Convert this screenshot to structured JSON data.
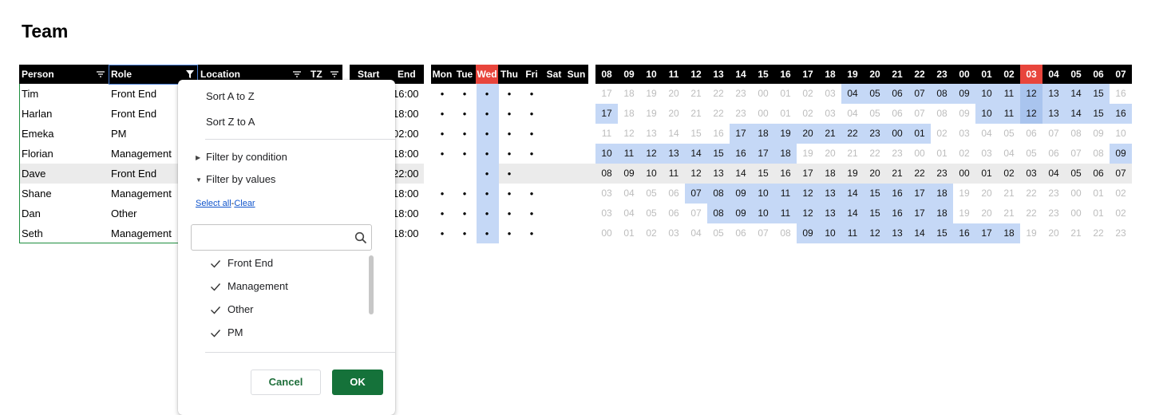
{
  "title": "Team",
  "headers": {
    "person": "Person",
    "role": "Role",
    "location": "Location",
    "tz": "TZ",
    "start": "Start",
    "end": "End",
    "days": [
      "Mon",
      "Tue",
      "Wed",
      "Thu",
      "Fri",
      "Sat",
      "Sun"
    ],
    "current_day": "Wed",
    "hours": [
      "08",
      "09",
      "10",
      "11",
      "12",
      "13",
      "14",
      "15",
      "16",
      "17",
      "18",
      "19",
      "20",
      "21",
      "22",
      "23",
      "00",
      "01",
      "02",
      "03",
      "04",
      "05",
      "06",
      "07"
    ],
    "current_hour": "03"
  },
  "colors": {
    "current_highlight": "#e8453c",
    "working": "#c5d8f6",
    "now": "#a9c4ee",
    "accent": "#15723a"
  },
  "people": [
    {
      "person": "Tim",
      "role": "Front End",
      "end": "16:00",
      "days": [
        "•",
        "•",
        "•",
        "•",
        "•",
        "",
        ""
      ],
      "hours": [
        "17",
        "18",
        "19",
        "20",
        "21",
        "22",
        "23",
        "00",
        "01",
        "02",
        "03",
        "04",
        "05",
        "06",
        "07",
        "08",
        "09",
        "10",
        "11",
        "12",
        "13",
        "14",
        "15",
        "16"
      ],
      "work_from": 11,
      "work_to": 22,
      "hour_style": "range"
    },
    {
      "person": "Harlan",
      "role": "Front End",
      "end": "18:00",
      "days": [
        "•",
        "•",
        "•",
        "•",
        "•",
        "",
        ""
      ],
      "hours": [
        "17",
        "18",
        "19",
        "20",
        "21",
        "22",
        "23",
        "00",
        "01",
        "02",
        "03",
        "04",
        "05",
        "06",
        "07",
        "08",
        "09",
        "10",
        "11",
        "12",
        "13",
        "14",
        "15",
        "16"
      ],
      "work_from": 17,
      "work_to": 23,
      "extra_in": [
        0
      ],
      "hour_style": "range"
    },
    {
      "person": "Emeka",
      "role": "PM",
      "end": "02:00",
      "days": [
        "•",
        "•",
        "•",
        "•",
        "•",
        "",
        ""
      ],
      "hours": [
        "11",
        "12",
        "13",
        "14",
        "15",
        "16",
        "17",
        "18",
        "19",
        "20",
        "21",
        "22",
        "23",
        "00",
        "01",
        "02",
        "03",
        "04",
        "05",
        "06",
        "07",
        "08",
        "09",
        "10"
      ],
      "work_from": 6,
      "work_to": 14,
      "hour_style": "range"
    },
    {
      "person": "Florian",
      "role": "Management",
      "end": "18:00",
      "days": [
        "•",
        "•",
        "•",
        "•",
        "•",
        "",
        ""
      ],
      "hours": [
        "10",
        "11",
        "12",
        "13",
        "14",
        "15",
        "16",
        "17",
        "18",
        "19",
        "20",
        "21",
        "22",
        "23",
        "00",
        "01",
        "02",
        "03",
        "04",
        "05",
        "06",
        "07",
        "08",
        "09"
      ],
      "work_from": 0,
      "work_to": 8,
      "extra_in": [
        23
      ],
      "hour_style": "range"
    },
    {
      "person": "Dave",
      "role": "Front End",
      "end": "22:00",
      "days": [
        "",
        "",
        "•",
        "•",
        "",
        "",
        ""
      ],
      "hours": [
        "08",
        "09",
        "10",
        "11",
        "12",
        "13",
        "14",
        "15",
        "16",
        "17",
        "18",
        "19",
        "20",
        "21",
        "22",
        "23",
        "00",
        "01",
        "02",
        "03",
        "04",
        "05",
        "06",
        "07"
      ],
      "work_from": -1,
      "work_to": -1,
      "hour_style": "plain",
      "highlight": true
    },
    {
      "person": "Shane",
      "role": "Management",
      "end": "18:00",
      "days": [
        "•",
        "•",
        "•",
        "•",
        "•",
        "",
        ""
      ],
      "hours": [
        "03",
        "04",
        "05",
        "06",
        "07",
        "08",
        "09",
        "10",
        "11",
        "12",
        "13",
        "14",
        "15",
        "16",
        "17",
        "18",
        "19",
        "20",
        "21",
        "22",
        "23",
        "00",
        "01",
        "02"
      ],
      "work_from": 4,
      "work_to": 15,
      "hour_style": "range"
    },
    {
      "person": "Dan",
      "role": "Other",
      "end": "18:00",
      "days": [
        "•",
        "•",
        "•",
        "•",
        "•",
        "",
        ""
      ],
      "hours": [
        "03",
        "04",
        "05",
        "06",
        "07",
        "08",
        "09",
        "10",
        "11",
        "12",
        "13",
        "14",
        "15",
        "16",
        "17",
        "18",
        "19",
        "20",
        "21",
        "22",
        "23",
        "00",
        "01",
        "02"
      ],
      "work_from": 5,
      "work_to": 15,
      "hour_style": "range"
    },
    {
      "person": "Seth",
      "role": "Management",
      "end": "18:00",
      "days": [
        "•",
        "•",
        "•",
        "•",
        "•",
        "",
        ""
      ],
      "hours": [
        "00",
        "01",
        "02",
        "03",
        "04",
        "05",
        "06",
        "07",
        "08",
        "09",
        "10",
        "11",
        "12",
        "13",
        "14",
        "15",
        "16",
        "17",
        "18",
        "19",
        "20",
        "21",
        "22",
        "23"
      ],
      "work_from": 9,
      "work_to": 18,
      "hour_style": "range"
    }
  ],
  "filter_menu": {
    "sort_az": "Sort A to Z",
    "sort_za": "Sort Z to A",
    "filter_by_condition": "Filter by condition",
    "filter_by_values": "Filter by values",
    "select_all": "Select all",
    "separator": "-",
    "clear": "Clear",
    "search_placeholder": "",
    "values": [
      {
        "label": "Front End",
        "checked": true
      },
      {
        "label": "Management",
        "checked": true
      },
      {
        "label": "Other",
        "checked": true
      },
      {
        "label": "PM",
        "checked": true
      }
    ],
    "cancel_label": "Cancel",
    "ok_label": "OK"
  }
}
